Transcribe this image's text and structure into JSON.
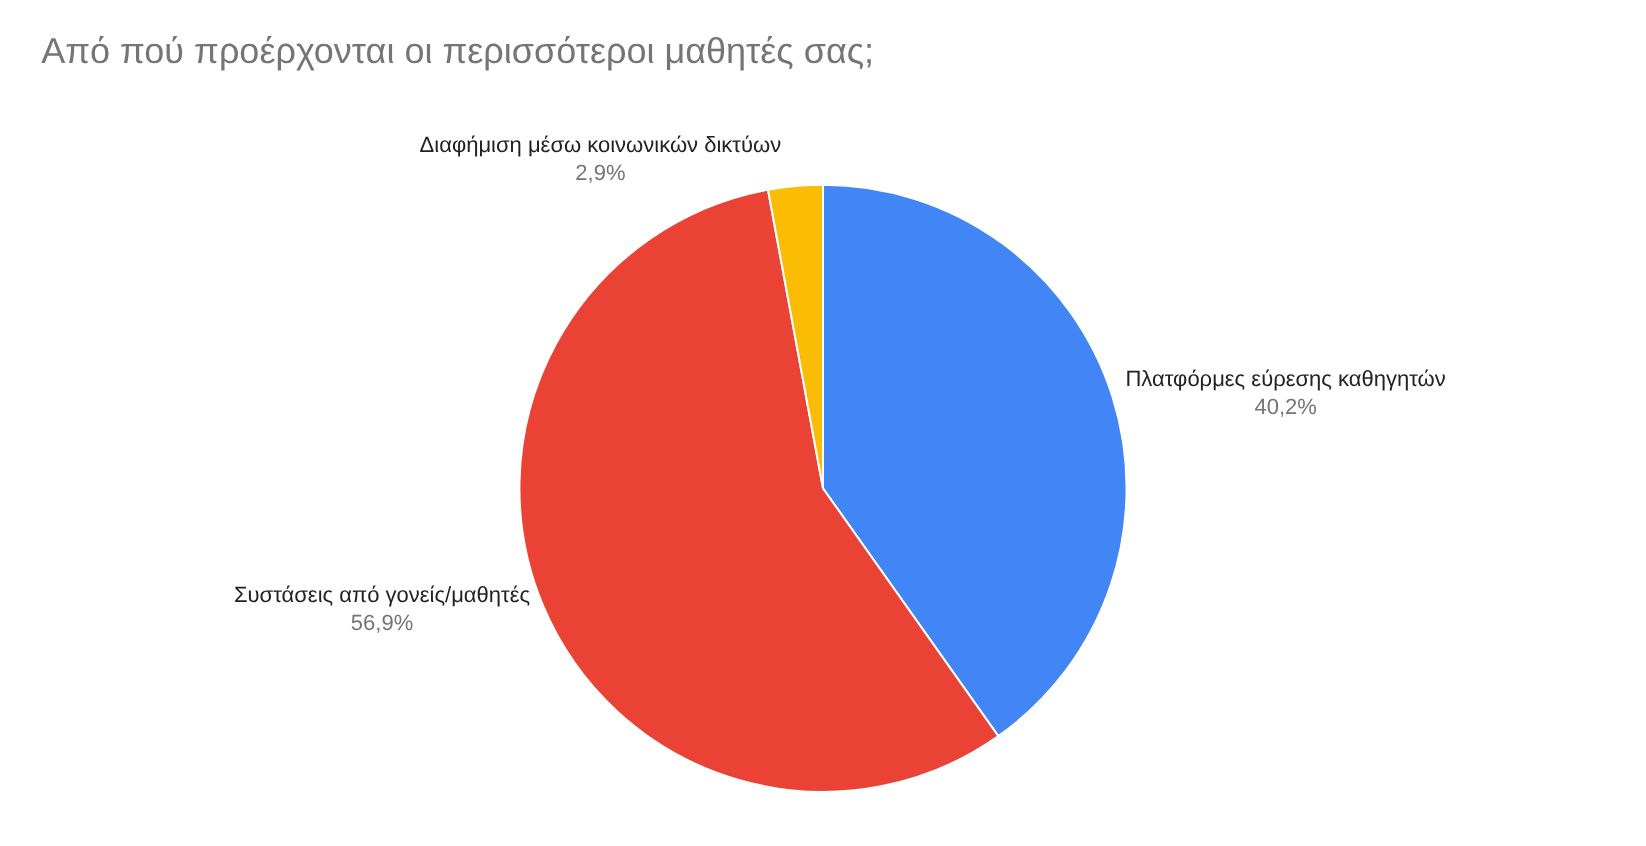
{
  "chart_data": {
    "type": "pie",
    "title": "Από πού προέρχονται οι περισσότεροι μαθητές σας;",
    "categories": [
      "Πλατφόρμες εύρεσης καθηγητών",
      "Συστάσεις από γονείς/μαθητές",
      "Διαφήμιση μέσω κοινωνικών δικτύων"
    ],
    "values": [
      40.2,
      56.9,
      2.9
    ],
    "value_labels": [
      "40,2%",
      "56,9%",
      "2,9%"
    ],
    "colors": [
      "#4285f4",
      "#ea4335",
      "#fbbc04"
    ],
    "legend": false
  }
}
